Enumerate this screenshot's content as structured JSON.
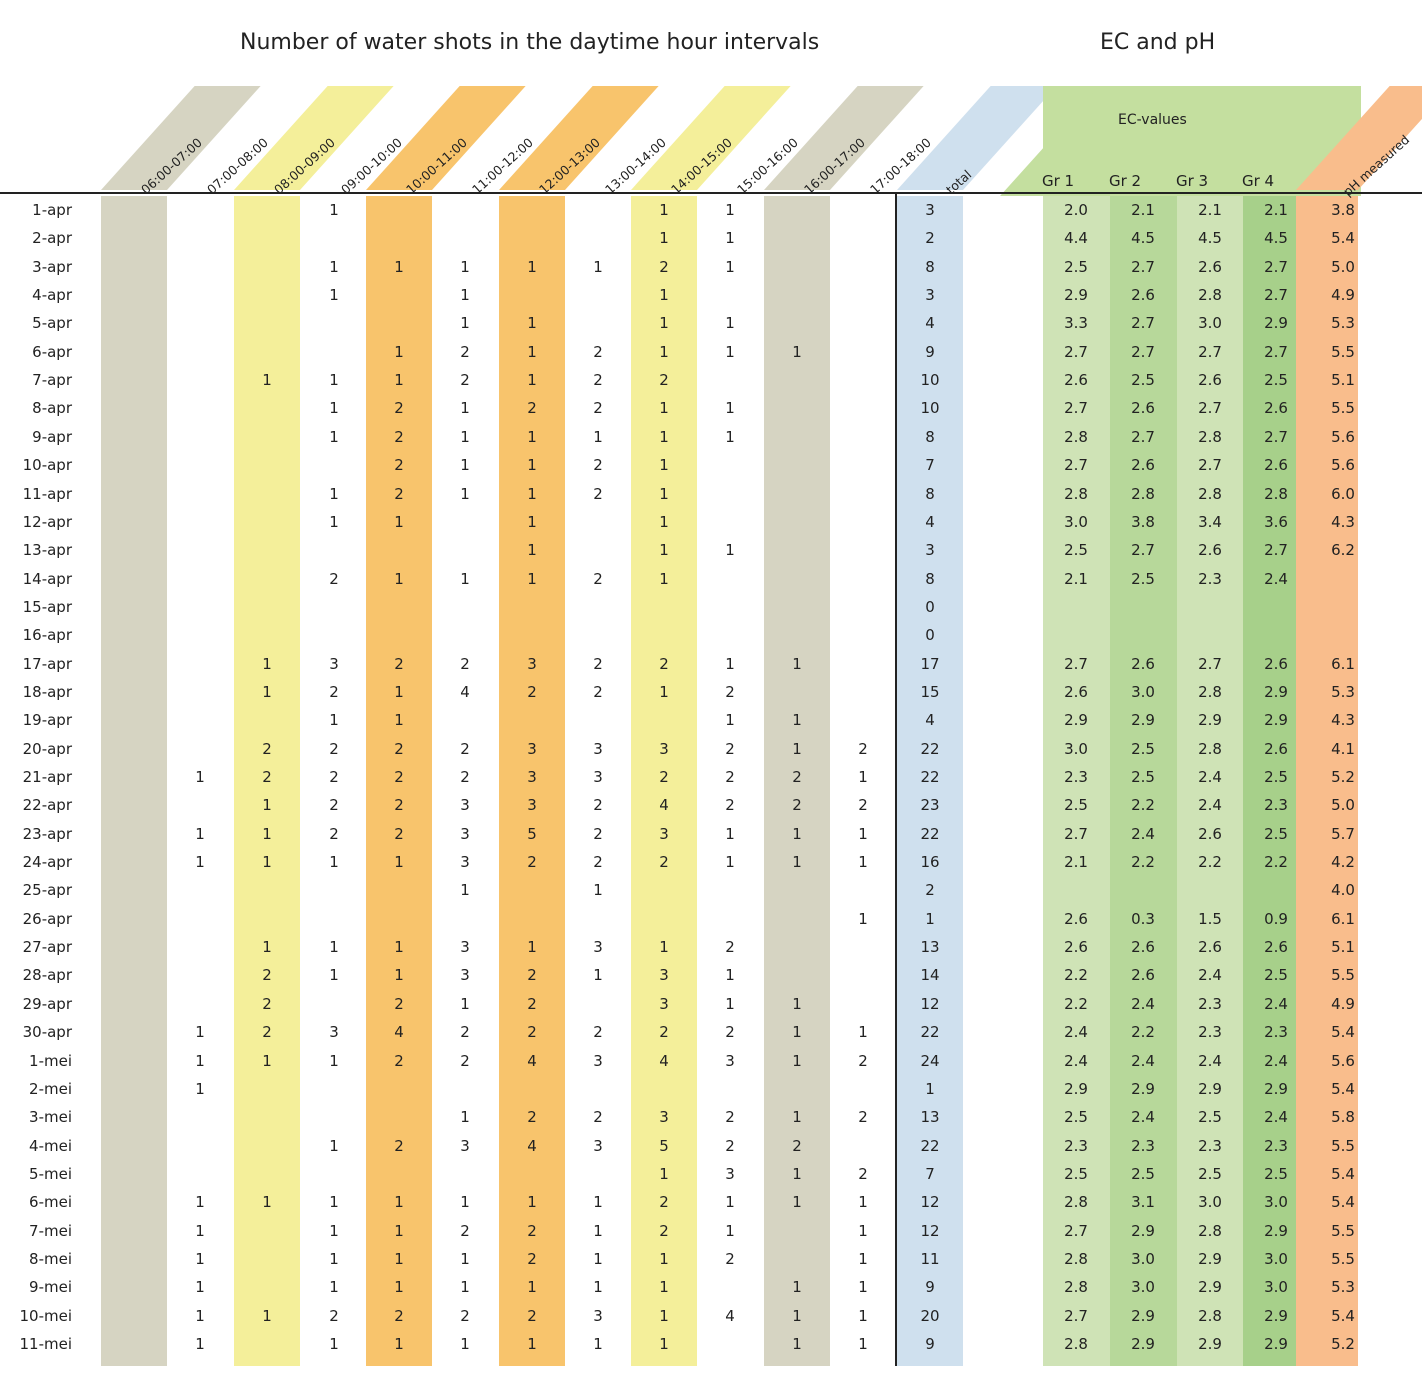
{
  "title_shots": "Number of water shots in the daytime hour intervals",
  "title_ec": "EC and pH",
  "ec_group_label": "EC-values",
  "colors": {
    "gray": "#d6d4c2",
    "yellow": "#f4ef9a",
    "orange": "#f8c46c",
    "blue": "#cfe0ee",
    "green_light": "#cfe3b6",
    "green_mid": "#b7d89a",
    "green_dark": "#a7d08a",
    "peach": "#f9bd8c"
  },
  "interval_headers": [
    "06:00-07:00",
    "07:00-08:00",
    "08:00-09:00",
    "09:00-10:00",
    "10:00-11:00",
    "11:00-12:00",
    "12:00-13:00",
    "13:00-14:00",
    "14:00-15:00",
    "15:00-16:00",
    "16:00-17:00",
    "17:00-18:00"
  ],
  "total_header": "total",
  "ec_headers": [
    "Gr 1",
    "Gr 2",
    "Gr 3",
    "Gr 4"
  ],
  "ph_header": "pH measured",
  "rows": [
    {
      "date": "1-apr",
      "shots": [
        "",
        "",
        "",
        "1",
        "",
        "",
        "",
        "",
        "1",
        "1",
        "",
        ""
      ],
      "total": "3",
      "ec": [
        "2.0",
        "2.1",
        "2.1",
        "2.1"
      ],
      "ph": "3.8"
    },
    {
      "date": "2-apr",
      "shots": [
        "",
        "",
        "",
        "",
        "",
        "",
        "",
        "",
        "1",
        "1",
        "",
        ""
      ],
      "total": "2",
      "ec": [
        "4.4",
        "4.5",
        "4.5",
        "4.5"
      ],
      "ph": "5.4"
    },
    {
      "date": "3-apr",
      "shots": [
        "",
        "",
        "",
        "1",
        "1",
        "1",
        "1",
        "1",
        "2",
        "1",
        "",
        ""
      ],
      "total": "8",
      "ec": [
        "2.5",
        "2.7",
        "2.6",
        "2.7"
      ],
      "ph": "5.0"
    },
    {
      "date": "4-apr",
      "shots": [
        "",
        "",
        "",
        "1",
        "",
        "1",
        "",
        "",
        "1",
        "",
        "",
        ""
      ],
      "total": "3",
      "ec": [
        "2.9",
        "2.6",
        "2.8",
        "2.7"
      ],
      "ph": "4.9"
    },
    {
      "date": "5-apr",
      "shots": [
        "",
        "",
        "",
        "",
        "",
        "1",
        "1",
        "",
        "1",
        "1",
        "",
        ""
      ],
      "total": "4",
      "ec": [
        "3.3",
        "2.7",
        "3.0",
        "2.9"
      ],
      "ph": "5.3"
    },
    {
      "date": "6-apr",
      "shots": [
        "",
        "",
        "",
        "",
        "1",
        "2",
        "1",
        "2",
        "1",
        "1",
        "1",
        ""
      ],
      "total": "9",
      "ec": [
        "2.7",
        "2.7",
        "2.7",
        "2.7"
      ],
      "ph": "5.5"
    },
    {
      "date": "7-apr",
      "shots": [
        "",
        "",
        "1",
        "1",
        "1",
        "2",
        "1",
        "2",
        "2",
        "",
        "",
        ""
      ],
      "total": "10",
      "ec": [
        "2.6",
        "2.5",
        "2.6",
        "2.5"
      ],
      "ph": "5.1"
    },
    {
      "date": "8-apr",
      "shots": [
        "",
        "",
        "",
        "1",
        "2",
        "1",
        "2",
        "2",
        "1",
        "1",
        "",
        ""
      ],
      "total": "10",
      "ec": [
        "2.7",
        "2.6",
        "2.7",
        "2.6"
      ],
      "ph": "5.5"
    },
    {
      "date": "9-apr",
      "shots": [
        "",
        "",
        "",
        "1",
        "2",
        "1",
        "1",
        "1",
        "1",
        "1",
        "",
        ""
      ],
      "total": "8",
      "ec": [
        "2.8",
        "2.7",
        "2.8",
        "2.7"
      ],
      "ph": "5.6"
    },
    {
      "date": "10-apr",
      "shots": [
        "",
        "",
        "",
        "",
        "2",
        "1",
        "1",
        "2",
        "1",
        "",
        "",
        ""
      ],
      "total": "7",
      "ec": [
        "2.7",
        "2.6",
        "2.7",
        "2.6"
      ],
      "ph": "5.6"
    },
    {
      "date": "11-apr",
      "shots": [
        "",
        "",
        "",
        "1",
        "2",
        "1",
        "1",
        "2",
        "1",
        "",
        "",
        ""
      ],
      "total": "8",
      "ec": [
        "2.8",
        "2.8",
        "2.8",
        "2.8"
      ],
      "ph": "6.0"
    },
    {
      "date": "12-apr",
      "shots": [
        "",
        "",
        "",
        "1",
        "1",
        "",
        "1",
        "",
        "1",
        "",
        "",
        ""
      ],
      "total": "4",
      "ec": [
        "3.0",
        "3.8",
        "3.4",
        "3.6"
      ],
      "ph": "4.3"
    },
    {
      "date": "13-apr",
      "shots": [
        "",
        "",
        "",
        "",
        "",
        "",
        "1",
        "",
        "1",
        "1",
        "",
        ""
      ],
      "total": "3",
      "ec": [
        "2.5",
        "2.7",
        "2.6",
        "2.7"
      ],
      "ph": "6.2"
    },
    {
      "date": "14-apr",
      "shots": [
        "",
        "",
        "",
        "2",
        "1",
        "1",
        "1",
        "2",
        "1",
        "",
        "",
        ""
      ],
      "total": "8",
      "ec": [
        "2.1",
        "2.5",
        "2.3",
        "2.4"
      ],
      "ph": ""
    },
    {
      "date": "15-apr",
      "shots": [
        "",
        "",
        "",
        "",
        "",
        "",
        "",
        "",
        "",
        "",
        "",
        ""
      ],
      "total": "0",
      "ec": [
        "",
        "",
        "",
        ""
      ],
      "ph": ""
    },
    {
      "date": "16-apr",
      "shots": [
        "",
        "",
        "",
        "",
        "",
        "",
        "",
        "",
        "",
        "",
        "",
        ""
      ],
      "total": "0",
      "ec": [
        "",
        "",
        "",
        ""
      ],
      "ph": ""
    },
    {
      "date": "17-apr",
      "shots": [
        "",
        "",
        "1",
        "3",
        "2",
        "2",
        "3",
        "2",
        "2",
        "1",
        "1",
        ""
      ],
      "total": "17",
      "ec": [
        "2.7",
        "2.6",
        "2.7",
        "2.6"
      ],
      "ph": "6.1"
    },
    {
      "date": "18-apr",
      "shots": [
        "",
        "",
        "1",
        "2",
        "1",
        "4",
        "2",
        "2",
        "1",
        "2",
        "",
        ""
      ],
      "total": "15",
      "ec": [
        "2.6",
        "3.0",
        "2.8",
        "2.9"
      ],
      "ph": "5.3"
    },
    {
      "date": "19-apr",
      "shots": [
        "",
        "",
        "",
        "1",
        "1",
        "",
        "",
        "",
        "",
        "1",
        "1",
        ""
      ],
      "total": "4",
      "ec": [
        "2.9",
        "2.9",
        "2.9",
        "2.9"
      ],
      "ph": "4.3"
    },
    {
      "date": "20-apr",
      "shots": [
        "",
        "",
        "2",
        "2",
        "2",
        "2",
        "3",
        "3",
        "3",
        "2",
        "1",
        "2"
      ],
      "total": "22",
      "ec": [
        "3.0",
        "2.5",
        "2.8",
        "2.6"
      ],
      "ph": "4.1"
    },
    {
      "date": "21-apr",
      "shots": [
        "",
        "1",
        "2",
        "2",
        "2",
        "2",
        "3",
        "3",
        "2",
        "2",
        "2",
        "1"
      ],
      "total": "22",
      "ec": [
        "2.3",
        "2.5",
        "2.4",
        "2.5"
      ],
      "ph": "5.2"
    },
    {
      "date": "22-apr",
      "shots": [
        "",
        "",
        "1",
        "2",
        "2",
        "3",
        "3",
        "2",
        "4",
        "2",
        "2",
        "2"
      ],
      "total": "23",
      "ec": [
        "2.5",
        "2.2",
        "2.4",
        "2.3"
      ],
      "ph": "5.0"
    },
    {
      "date": "23-apr",
      "shots": [
        "",
        "1",
        "1",
        "2",
        "2",
        "3",
        "5",
        "2",
        "3",
        "1",
        "1",
        "1"
      ],
      "total": "22",
      "ec": [
        "2.7",
        "2.4",
        "2.6",
        "2.5"
      ],
      "ph": "5.7"
    },
    {
      "date": "24-apr",
      "shots": [
        "",
        "1",
        "1",
        "1",
        "1",
        "3",
        "2",
        "2",
        "2",
        "1",
        "1",
        "1"
      ],
      "total": "16",
      "ec": [
        "2.1",
        "2.2",
        "2.2",
        "2.2"
      ],
      "ph": "4.2"
    },
    {
      "date": "25-apr",
      "shots": [
        "",
        "",
        "",
        "",
        "",
        "1",
        "",
        "1",
        "",
        "",
        "",
        ""
      ],
      "total": "2",
      "ec": [
        "",
        "",
        "",
        ""
      ],
      "ph": "4.0"
    },
    {
      "date": "26-apr",
      "shots": [
        "",
        "",
        "",
        "",
        "",
        "",
        "",
        "",
        "",
        "",
        "",
        "1"
      ],
      "total": "1",
      "ec": [
        "2.6",
        "0.3",
        "1.5",
        "0.9"
      ],
      "ph": "6.1"
    },
    {
      "date": "27-apr",
      "shots": [
        "",
        "",
        "1",
        "1",
        "1",
        "3",
        "1",
        "3",
        "1",
        "2",
        "",
        ""
      ],
      "total": "13",
      "ec": [
        "2.6",
        "2.6",
        "2.6",
        "2.6"
      ],
      "ph": "5.1"
    },
    {
      "date": "28-apr",
      "shots": [
        "",
        "",
        "2",
        "1",
        "1",
        "3",
        "2",
        "1",
        "3",
        "1",
        "",
        ""
      ],
      "total": "14",
      "ec": [
        "2.2",
        "2.6",
        "2.4",
        "2.5"
      ],
      "ph": "5.5"
    },
    {
      "date": "29-apr",
      "shots": [
        "",
        "",
        "2",
        "",
        "2",
        "1",
        "2",
        "",
        "3",
        "1",
        "1",
        ""
      ],
      "total": "12",
      "ec": [
        "2.2",
        "2.4",
        "2.3",
        "2.4"
      ],
      "ph": "4.9"
    },
    {
      "date": "30-apr",
      "shots": [
        "",
        "1",
        "2",
        "3",
        "4",
        "2",
        "2",
        "2",
        "2",
        "2",
        "1",
        "1"
      ],
      "total": "22",
      "ec": [
        "2.4",
        "2.2",
        "2.3",
        "2.3"
      ],
      "ph": "5.4"
    },
    {
      "date": "1-mei",
      "shots": [
        "",
        "1",
        "1",
        "1",
        "2",
        "2",
        "4",
        "3",
        "4",
        "3",
        "1",
        "2"
      ],
      "total": "24",
      "ec": [
        "2.4",
        "2.4",
        "2.4",
        "2.4"
      ],
      "ph": "5.6"
    },
    {
      "date": "2-mei",
      "shots": [
        "",
        "1",
        "",
        "",
        "",
        "",
        "",
        "",
        "",
        "",
        "",
        ""
      ],
      "total": "1",
      "ec": [
        "2.9",
        "2.9",
        "2.9",
        "2.9"
      ],
      "ph": "5.4"
    },
    {
      "date": "3-mei",
      "shots": [
        "",
        "",
        "",
        "",
        "",
        "1",
        "2",
        "2",
        "3",
        "2",
        "1",
        "2"
      ],
      "total": "13",
      "ec": [
        "2.5",
        "2.4",
        "2.5",
        "2.4"
      ],
      "ph": "5.8"
    },
    {
      "date": "4-mei",
      "shots": [
        "",
        "",
        "",
        "1",
        "2",
        "3",
        "4",
        "3",
        "5",
        "2",
        "2",
        ""
      ],
      "total": "22",
      "ec": [
        "2.3",
        "2.3",
        "2.3",
        "2.3"
      ],
      "ph": "5.5"
    },
    {
      "date": "5-mei",
      "shots": [
        "",
        "",
        "",
        "",
        "",
        "",
        "",
        "",
        "1",
        "3",
        "1",
        "2"
      ],
      "total": "7",
      "ec": [
        "2.5",
        "2.5",
        "2.5",
        "2.5"
      ],
      "ph": "5.4"
    },
    {
      "date": "6-mei",
      "shots": [
        "",
        "1",
        "1",
        "1",
        "1",
        "1",
        "1",
        "1",
        "2",
        "1",
        "1",
        "1"
      ],
      "total": "12",
      "ec": [
        "2.8",
        "3.1",
        "3.0",
        "3.0"
      ],
      "ph": "5.4"
    },
    {
      "date": "7-mei",
      "shots": [
        "",
        "1",
        "",
        "1",
        "1",
        "2",
        "2",
        "1",
        "2",
        "1",
        "",
        "1"
      ],
      "total": "12",
      "ec": [
        "2.7",
        "2.9",
        "2.8",
        "2.9"
      ],
      "ph": "5.5"
    },
    {
      "date": "8-mei",
      "shots": [
        "",
        "1",
        "",
        "1",
        "1",
        "1",
        "2",
        "1",
        "1",
        "2",
        "",
        "1"
      ],
      "total": "11",
      "ec": [
        "2.8",
        "3.0",
        "2.9",
        "3.0"
      ],
      "ph": "5.5"
    },
    {
      "date": "9-mei",
      "shots": [
        "",
        "1",
        "",
        "1",
        "1",
        "1",
        "1",
        "1",
        "1",
        "",
        "1",
        "1"
      ],
      "total": "9",
      "ec": [
        "2.8",
        "3.0",
        "2.9",
        "3.0"
      ],
      "ph": "5.3"
    },
    {
      "date": "10-mei",
      "shots": [
        "",
        "1",
        "1",
        "2",
        "2",
        "2",
        "2",
        "3",
        "1",
        "4",
        "1",
        "1"
      ],
      "total": "20",
      "ec": [
        "2.7",
        "2.9",
        "2.8",
        "2.9"
      ],
      "ph": "5.4"
    },
    {
      "date": "11-mei",
      "shots": [
        "",
        "1",
        "",
        "1",
        "1",
        "1",
        "1",
        "1",
        "1",
        "",
        "1",
        "1"
      ],
      "total": "9",
      "ec": [
        "2.8",
        "2.9",
        "2.9",
        "2.9"
      ],
      "ph": "5.2"
    }
  ]
}
